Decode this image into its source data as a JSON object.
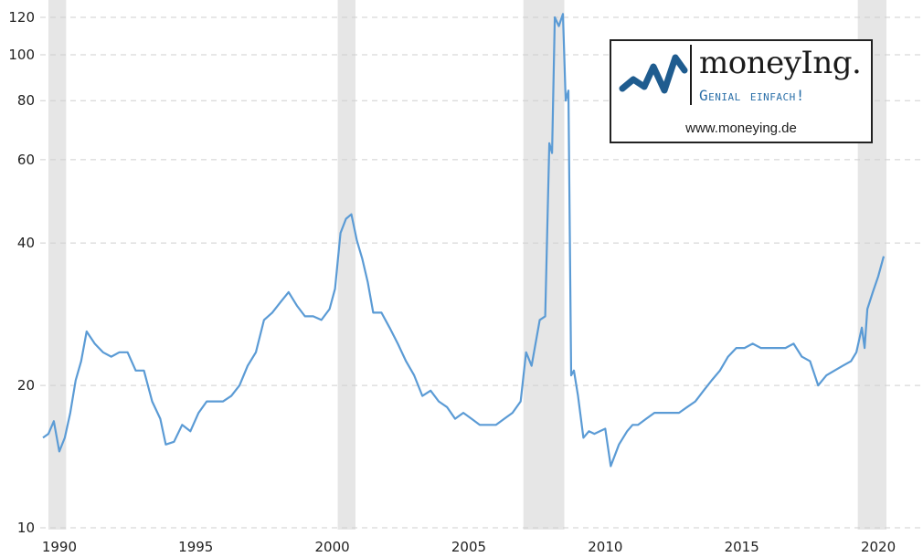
{
  "chart_data": {
    "type": "line",
    "title": "",
    "xlabel": "",
    "ylabel": "",
    "yscale": "log",
    "ylim": [
      10,
      130
    ],
    "xlim": [
      1989.3,
      2020.3
    ],
    "grid": "horizontal dashed",
    "x_ticks": [
      "1990",
      "1995",
      "2000",
      "2005",
      "2010",
      "2015",
      "2020"
    ],
    "y_ticks": [
      "10",
      "20",
      "40",
      "60",
      "80",
      "100",
      "120"
    ],
    "recessions": [
      [
        1989.6,
        1990.25
      ],
      [
        2000.2,
        2000.85
      ],
      [
        2007.0,
        2008.5
      ],
      [
        2019.25,
        2020.3
      ]
    ],
    "line_color": "#5b9bd5",
    "series": [
      {
        "x": [
          1989.4,
          1989.6,
          1989.8,
          1990.0,
          1990.2,
          1990.4,
          1990.6,
          1990.8,
          1991.0,
          1991.3,
          1991.6,
          1991.9,
          1992.2,
          1992.5,
          1992.8,
          1993.1,
          1993.4,
          1993.7,
          1993.9,
          1994.2,
          1994.5,
          1994.8,
          1995.1,
          1995.4,
          1995.7,
          1996.0,
          1996.3,
          1996.6,
          1996.9,
          1997.2,
          1997.5,
          1997.8,
          1998.1,
          1998.4,
          1998.7,
          1999.0,
          1999.3,
          1999.6,
          1999.9,
          2000.1,
          2000.3,
          2000.5,
          2000.7,
          2000.9,
          2001.1,
          2001.3,
          2001.5,
          2001.8,
          2002.1,
          2002.4,
          2002.7,
          2003.0,
          2003.3,
          2003.6,
          2003.9,
          2004.2,
          2004.5,
          2004.8,
          2005.1,
          2005.4,
          2005.7,
          2006.0,
          2006.3,
          2006.6,
          2006.9,
          2007.1,
          2007.3,
          2007.6,
          2007.8,
          2007.95,
          2008.05,
          2008.15,
          2008.3,
          2008.45,
          2008.55,
          2008.65,
          2008.75,
          2008.85,
          2009.0,
          2009.2,
          2009.4,
          2009.6,
          2009.8,
          2010.0,
          2010.2,
          2010.5,
          2010.8,
          2011.0,
          2011.2,
          2011.5,
          2011.8,
          2012.1,
          2012.4,
          2012.7,
          2013.0,
          2013.3,
          2013.6,
          2013.9,
          2014.2,
          2014.5,
          2014.8,
          2015.1,
          2015.4,
          2015.7,
          2016.0,
          2016.3,
          2016.6,
          2016.9,
          2017.2,
          2017.5,
          2017.8,
          2018.1,
          2018.4,
          2018.7,
          2019.0,
          2019.2,
          2019.4,
          2019.5,
          2019.6,
          2019.8,
          2020.0,
          2020.2
        ],
        "values": [
          15.5,
          15.8,
          16.8,
          14.5,
          15.5,
          17.5,
          20.5,
          22.5,
          26.0,
          24.5,
          23.5,
          23.0,
          23.5,
          23.5,
          21.5,
          21.5,
          18.5,
          17.0,
          15.0,
          15.2,
          16.5,
          16.0,
          17.5,
          18.5,
          18.5,
          18.5,
          19.0,
          20.0,
          22.0,
          23.5,
          27.5,
          28.5,
          30.0,
          31.5,
          29.5,
          28.0,
          28.0,
          27.5,
          29.0,
          32.0,
          42.0,
          45.0,
          46.0,
          40.5,
          37.0,
          33.0,
          28.5,
          28.5,
          26.5,
          24.5,
          22.5,
          21.0,
          19.0,
          19.5,
          18.5,
          18.0,
          17.0,
          17.5,
          17.0,
          16.5,
          16.5,
          16.5,
          17.0,
          17.5,
          18.5,
          23.5,
          22.0,
          27.5,
          28.0,
          65.0,
          62.0,
          120.0,
          115.0,
          122.0,
          80.0,
          84.0,
          21.0,
          21.5,
          19.0,
          15.5,
          16.0,
          15.8,
          16.0,
          16.2,
          13.5,
          15.0,
          16.0,
          16.5,
          16.5,
          17.0,
          17.5,
          17.5,
          17.5,
          17.5,
          18.0,
          18.5,
          19.5,
          20.5,
          21.5,
          23.0,
          24.0,
          24.0,
          24.5,
          24.0,
          24.0,
          24.0,
          24.0,
          24.5,
          23.0,
          22.5,
          20.0,
          21.0,
          21.5,
          22.0,
          22.5,
          23.5,
          26.5,
          24.0,
          29.0,
          31.5,
          34.0,
          37.5
        ]
      }
    ]
  },
  "logo": {
    "wordmark": "moneyIng.",
    "tagline": "Genial einfach!",
    "url": "www.moneying.de",
    "mark_color": "#1f5c8f",
    "tagline_color": "#2a6fa8"
  }
}
